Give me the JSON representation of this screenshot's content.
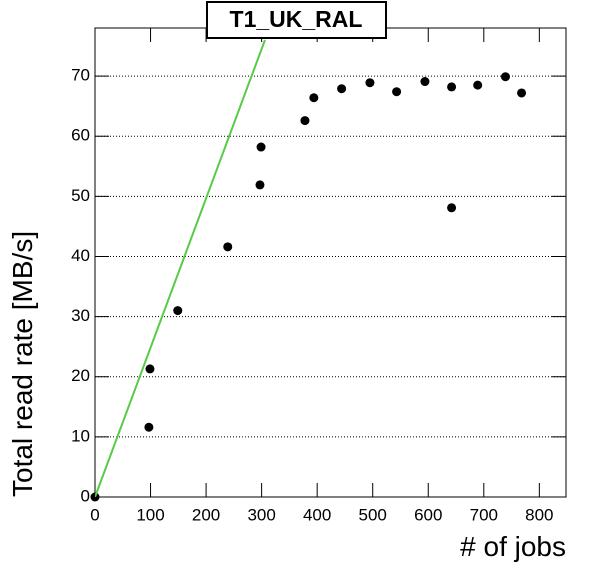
{
  "chart_data": {
    "type": "scatter",
    "title": "T1_UK_RAL",
    "x_label": "# of jobs",
    "y_label": "Total read rate [MB/s]",
    "x": [
      0,
      97,
      99,
      149,
      239,
      297,
      299,
      378,
      394,
      444,
      495,
      543,
      594,
      642,
      642,
      689,
      739,
      768
    ],
    "values": [
      0,
      11.6,
      21.3,
      31,
      41.6,
      51.9,
      58.2,
      62.6,
      66.4,
      67.9,
      68.9,
      67.4,
      69.1,
      68.2,
      48.1,
      68.5,
      69.9,
      67.2
    ],
    "color": "#000000",
    "fit_line": {
      "x": [
        0,
        306
      ],
      "values": [
        0,
        76
      ],
      "color": "#55cc44"
    },
    "xlim": [
      0,
      848
    ],
    "ylim": [
      0,
      78
    ],
    "xticks": [
      0,
      100,
      200,
      300,
      400,
      500,
      600,
      700,
      800
    ],
    "yticks": [
      0,
      10,
      20,
      30,
      40,
      50,
      60,
      70
    ],
    "grid": true
  }
}
